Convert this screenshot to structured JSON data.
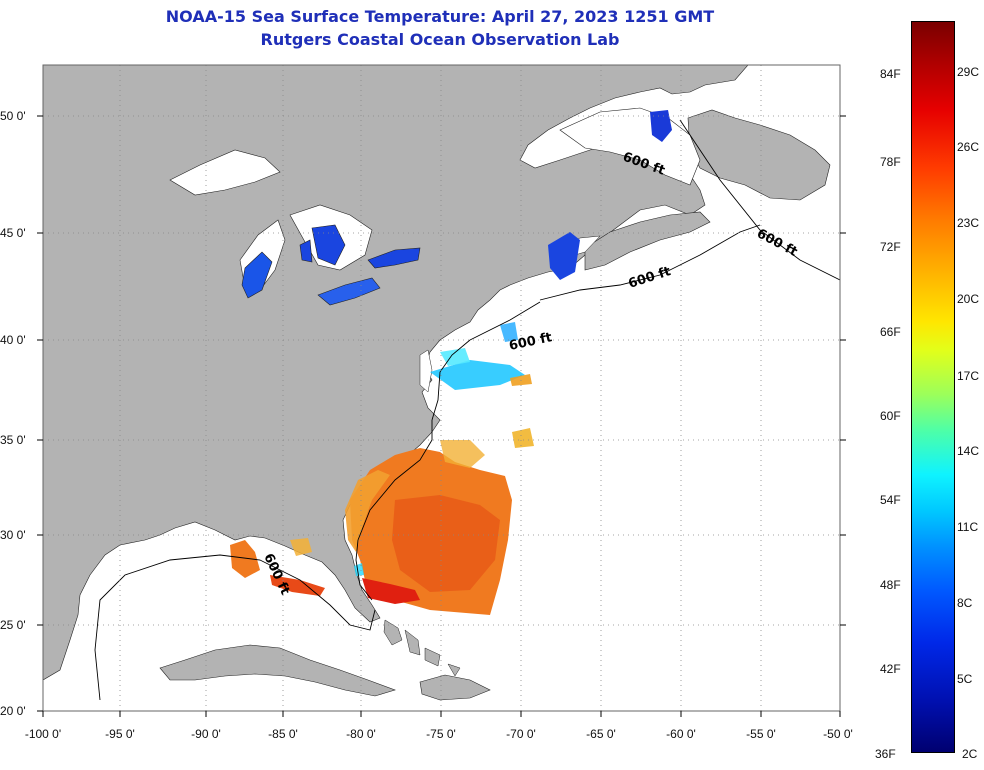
{
  "header": {
    "title": "NOAA-15 Sea Surface Temperature:  April 27, 2023 1251 GMT",
    "subtitle": "Rutgers Coastal Ocean Observation Lab"
  },
  "map": {
    "lat_labels": [
      {
        "lat": 50,
        "text": "50 0'"
      },
      {
        "lat": 45,
        "text": "45 0'"
      },
      {
        "lat": 40,
        "text": "40 0'"
      },
      {
        "lat": 35,
        "text": "35 0'"
      },
      {
        "lat": 30,
        "text": "30 0'"
      },
      {
        "lat": 25,
        "text": "25 0'"
      },
      {
        "lat": 20,
        "text": "20 0'"
      }
    ],
    "lon_labels": [
      {
        "lon": -100,
        "text": "-100 0'"
      },
      {
        "lon": -95,
        "text": "-95 0'"
      },
      {
        "lon": -90,
        "text": "-90 0'"
      },
      {
        "lon": -85,
        "text": "-85 0'"
      },
      {
        "lon": -80,
        "text": "-80 0'"
      },
      {
        "lon": -75,
        "text": "-75 0'"
      },
      {
        "lon": -70,
        "text": "-70 0'"
      },
      {
        "lon": -65,
        "text": "-65 0'"
      },
      {
        "lon": -60,
        "text": "-60 0'"
      },
      {
        "lon": -55,
        "text": "-55 0'"
      },
      {
        "lon": -50,
        "text": "-50 0'"
      }
    ],
    "contour_labels": [
      "600 ft",
      "600 ft",
      "600 ft",
      "600 ft",
      "600 ft"
    ],
    "land_color": "#b3b3b3",
    "water_color": "#ffffff"
  },
  "colorbar": {
    "fahrenheit": [
      "84F",
      "78F",
      "72F",
      "66F",
      "60F",
      "54F",
      "48F",
      "42F",
      "36F"
    ],
    "celsius": [
      "29C",
      "26C",
      "23C",
      "20C",
      "17C",
      "14C",
      "11C",
      "8C",
      "5C",
      "2C"
    ]
  }
}
